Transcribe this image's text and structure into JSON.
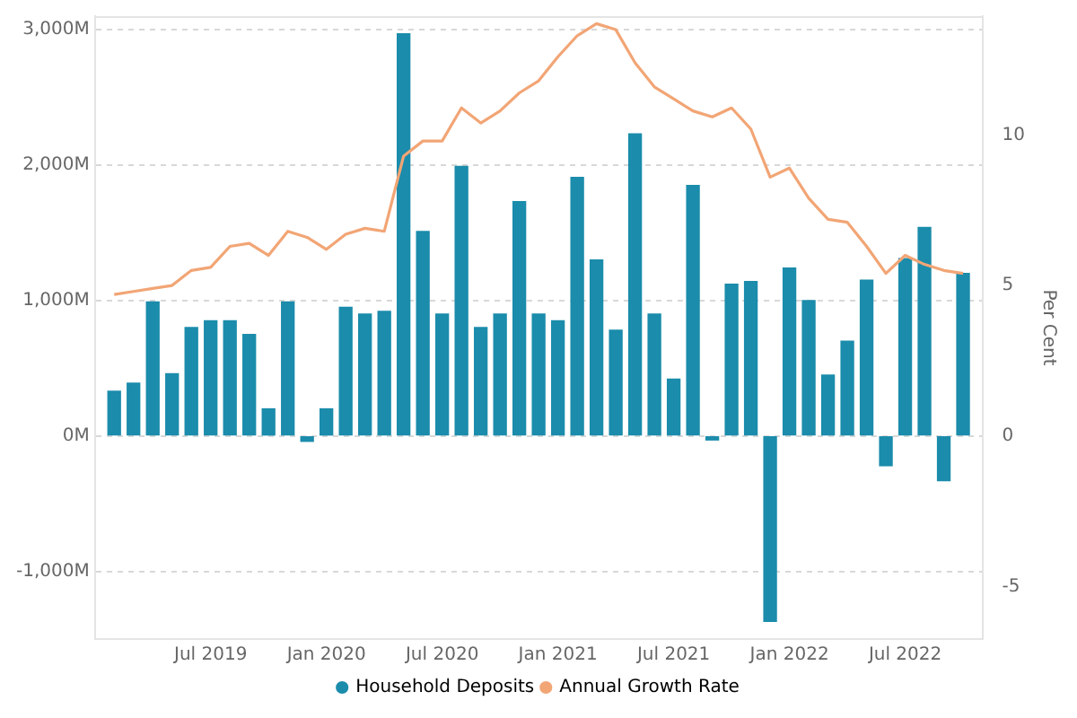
{
  "chart_data": {
    "type": "bar",
    "x": [
      "2019-02",
      "2019-03",
      "2019-04",
      "2019-05",
      "2019-06",
      "2019-07",
      "2019-08",
      "2019-09",
      "2019-10",
      "2019-11",
      "2019-12",
      "2020-01",
      "2020-02",
      "2020-03",
      "2020-04",
      "2020-05",
      "2020-06",
      "2020-07",
      "2020-08",
      "2020-09",
      "2020-10",
      "2020-11",
      "2020-12",
      "2021-01",
      "2021-02",
      "2021-03",
      "2021-04",
      "2021-05",
      "2021-06",
      "2021-07",
      "2021-08",
      "2021-09",
      "2021-10",
      "2021-11",
      "2021-12",
      "2022-01",
      "2022-02",
      "2022-03",
      "2022-04",
      "2022-05",
      "2022-06",
      "2022-07",
      "2022-08",
      "2022-09",
      "2022-10"
    ],
    "series": [
      {
        "name": "Household Deposits",
        "color": "#1b8cab",
        "values": [
          330,
          390,
          990,
          460,
          800,
          850,
          850,
          750,
          200,
          990,
          -40,
          200,
          950,
          900,
          920,
          2970,
          1510,
          900,
          1990,
          800,
          900,
          1730,
          900,
          850,
          1910,
          1300,
          780,
          2230,
          900,
          420,
          1850,
          -30,
          1120,
          1140,
          -1370,
          1240,
          1000,
          450,
          700,
          1150,
          -220,
          1310,
          1540,
          -330,
          1200
        ]
      },
      {
        "name": "Annual Growth Rate",
        "type": "line",
        "axis": "y2",
        "color": "#f2a575",
        "values": [
          4.7,
          4.8,
          4.9,
          5.0,
          5.5,
          5.6,
          6.3,
          6.4,
          6.0,
          6.8,
          6.6,
          6.2,
          6.7,
          6.9,
          6.8,
          9.3,
          9.8,
          9.8,
          10.9,
          10.4,
          10.8,
          11.4,
          11.8,
          12.6,
          13.3,
          13.7,
          13.5,
          12.4,
          11.6,
          11.2,
          10.8,
          10.6,
          10.9,
          10.2,
          8.6,
          8.9,
          7.9,
          7.2,
          7.1,
          6.3,
          5.4,
          6.0,
          5.7,
          5.5,
          5.4
        ]
      }
    ],
    "xlim": [
      "2019-01",
      "2022-11"
    ],
    "xticks": [
      {
        "value": "2019-07",
        "label": "Jul 2019"
      },
      {
        "value": "2020-01",
        "label": "Jan 2020"
      },
      {
        "value": "2020-07",
        "label": "Jul 2020"
      },
      {
        "value": "2021-01",
        "label": "Jan 2021"
      },
      {
        "value": "2021-07",
        "label": "Jul 2021"
      },
      {
        "value": "2022-01",
        "label": "Jan 2022"
      },
      {
        "value": "2022-07",
        "label": "Jul 2022"
      }
    ],
    "ylim": [
      -1500,
      3100
    ],
    "yticks": [
      {
        "value": -1000,
        "label": "-1,000M"
      },
      {
        "value": 0,
        "label": "0M"
      },
      {
        "value": 1000,
        "label": "1,000M"
      },
      {
        "value": 2000,
        "label": "2,000M"
      },
      {
        "value": 3000,
        "label": "3,000M"
      }
    ],
    "y2lim": [
      -6.75,
      13.95
    ],
    "y2ticks": [
      -5,
      0,
      5,
      10
    ],
    "y2label": "Per Cent",
    "grid": "y",
    "legend": "bottom",
    "marker": "none"
  }
}
